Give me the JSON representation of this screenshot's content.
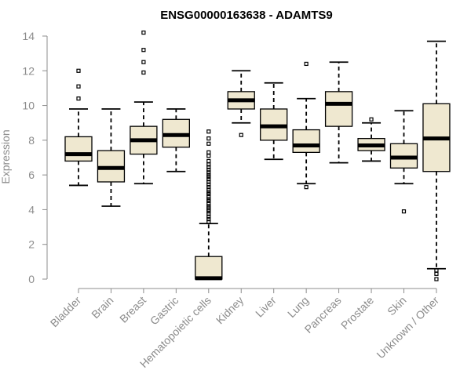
{
  "chart_data": {
    "type": "boxplot",
    "title": "ENSG00000163638 - ADAMTS9",
    "xlabel": "",
    "ylabel": "Expression",
    "ylim": [
      0,
      14
    ],
    "yticks": [
      0,
      2,
      4,
      6,
      8,
      10,
      12,
      14
    ],
    "categories": [
      "Bladder",
      "Brain",
      "Breast",
      "Gastric",
      "Hematopoietic cells",
      "Kidney",
      "Liver",
      "Lung",
      "Pancreas",
      "Prostate",
      "Skin",
      "Unknown / Other"
    ],
    "boxes": [
      {
        "category": "Bladder",
        "q1": 6.8,
        "median": 7.2,
        "q3": 8.2,
        "whisker_low": 5.4,
        "whisker_high": 9.8,
        "outliers": [
          10.4,
          11.1,
          12.0
        ]
      },
      {
        "category": "Brain",
        "q1": 5.6,
        "median": 6.4,
        "q3": 7.4,
        "whisker_low": 4.2,
        "whisker_high": 9.8,
        "outliers": []
      },
      {
        "category": "Breast",
        "q1": 7.2,
        "median": 8.0,
        "q3": 8.8,
        "whisker_low": 5.5,
        "whisker_high": 10.2,
        "outliers": [
          11.9,
          12.5,
          13.2,
          14.2
        ]
      },
      {
        "category": "Gastric",
        "q1": 7.6,
        "median": 8.3,
        "q3": 9.2,
        "whisker_low": 6.2,
        "whisker_high": 9.8,
        "outliers": []
      },
      {
        "category": "Hematopoietic cells",
        "q1": 0.0,
        "median": 0.05,
        "q3": 1.3,
        "whisker_low": 0.0,
        "whisker_high": 3.2,
        "outliers": [
          3.3,
          3.45,
          3.6,
          3.75,
          3.9,
          4.0,
          4.1,
          4.2,
          4.35,
          4.5,
          4.6,
          4.75,
          4.9,
          5.0,
          5.15,
          5.3,
          5.45,
          5.6,
          5.75,
          5.9,
          6.0,
          6.15,
          6.3,
          6.45,
          6.6,
          6.8,
          7.1,
          7.3,
          7.8,
          8.1,
          8.5
        ]
      },
      {
        "category": "Kidney",
        "q1": 9.8,
        "median": 10.3,
        "q3": 10.8,
        "whisker_low": 9.0,
        "whisker_high": 12.0,
        "outliers": [
          8.3
        ]
      },
      {
        "category": "Liver",
        "q1": 8.0,
        "median": 8.8,
        "q3": 9.8,
        "whisker_low": 6.9,
        "whisker_high": 11.3,
        "outliers": []
      },
      {
        "category": "Lung",
        "q1": 7.3,
        "median": 7.7,
        "q3": 8.6,
        "whisker_low": 5.5,
        "whisker_high": 10.4,
        "outliers": [
          5.3,
          12.4
        ]
      },
      {
        "category": "Pancreas",
        "q1": 8.8,
        "median": 10.1,
        "q3": 10.8,
        "whisker_low": 6.7,
        "whisker_high": 12.5,
        "outliers": []
      },
      {
        "category": "Prostate",
        "q1": 7.4,
        "median": 7.7,
        "q3": 8.1,
        "whisker_low": 6.8,
        "whisker_high": 9.0,
        "outliers": [
          9.2
        ]
      },
      {
        "category": "Skin",
        "q1": 6.4,
        "median": 7.0,
        "q3": 7.8,
        "whisker_low": 5.5,
        "whisker_high": 9.7,
        "outliers": [
          3.9
        ]
      },
      {
        "category": "Unknown / Other",
        "q1": 6.2,
        "median": 8.1,
        "q3": 10.1,
        "whisker_low": 0.6,
        "whisker_high": 13.7,
        "outliers": [
          0.0,
          0.3,
          0.5
        ]
      }
    ],
    "colors": {
      "box_fill": "#efe8d0",
      "stroke": "#000000",
      "axis": "#8c8c8c"
    }
  }
}
